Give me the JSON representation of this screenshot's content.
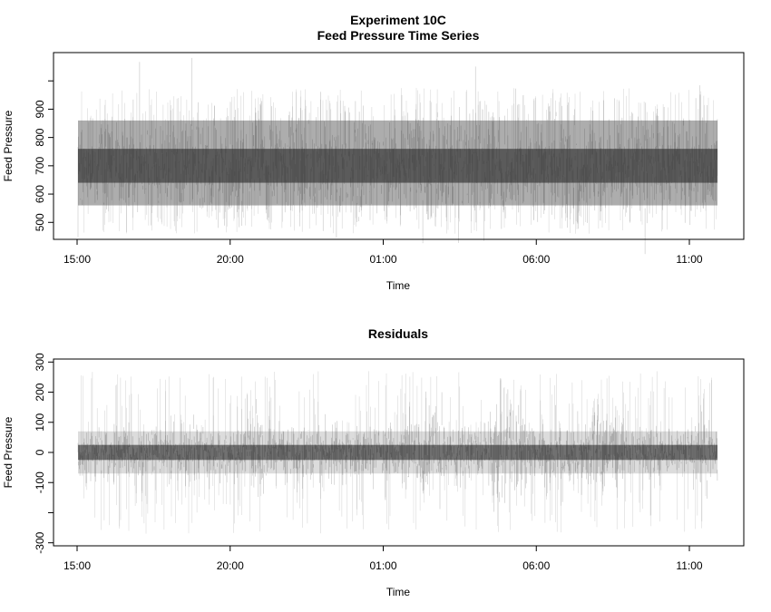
{
  "chart_data": [
    {
      "type": "line",
      "title": "Experiment 10C",
      "subtitle": "Feed Pressure Time Series",
      "xlabel": "Time",
      "ylabel": "Feed Pressure",
      "x_ticks": [
        "15:00",
        "20:00",
        "01:00",
        "06:00",
        "11:00"
      ],
      "x_tick_hours": [
        0,
        5,
        10,
        15,
        20
      ],
      "x_range_hours": [
        0,
        20.9
      ],
      "y_ticks": [
        500,
        600,
        700,
        800,
        900
      ],
      "ylim": [
        440,
        1100
      ],
      "series": [
        {
          "band": {
            "p05": 560,
            "p25": 640,
            "median": 700,
            "p75": 760,
            "p95": 860
          },
          "envelope": {
            "min": 460,
            "max": 975
          },
          "color": "#555555"
        }
      ],
      "grid": false,
      "legend": "none"
    },
    {
      "type": "line",
      "title": "Residuals",
      "xlabel": "Time",
      "ylabel": "Feed Pressure",
      "x_ticks": [
        "15:00",
        "20:00",
        "01:00",
        "06:00",
        "11:00"
      ],
      "x_tick_hours": [
        0,
        5,
        10,
        15,
        20
      ],
      "x_range_hours": [
        0,
        20.9
      ],
      "y_ticks": [
        -300,
        -100,
        0,
        100,
        200,
        300
      ],
      "y_tick_labels": [
        "-300",
        "-100",
        "0",
        "100",
        "200",
        "300"
      ],
      "ylim": [
        -310,
        310
      ],
      "series": [
        {
          "band": {
            "p05": -70,
            "p25": -25,
            "median": 0,
            "p75": 25,
            "p95": 70
          },
          "envelope": {
            "min": -270,
            "max": 270
          },
          "color": "#222222"
        }
      ],
      "grid": false,
      "legend": "none"
    }
  ]
}
